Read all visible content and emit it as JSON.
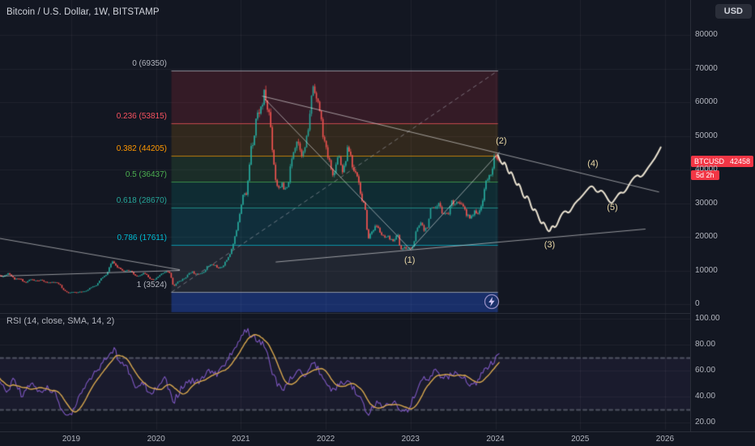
{
  "header": {
    "symbol_title": "Bitcoin / U.S. Dollar, 1W, BITSTAMP",
    "currency_button": "USD"
  },
  "colors": {
    "background": "#131722",
    "grid": "rgba(255,255,255,0.05)",
    "axis_text": "#b2b5be",
    "candle_up": "#26a69a",
    "candle_down": "#ef5350",
    "trendline": "rgba(255,255,255,0.55)",
    "projection": "#ece4d2",
    "wave_label": "#e9d8a6",
    "rsi_line": "#7e57c2",
    "rsi_sma": "#d9a84e",
    "price_tag_bg": "#f23645"
  },
  "price_axis": {
    "ticks": [
      "80000",
      "70000",
      "60000",
      "50000",
      "40000",
      "30000",
      "20000",
      "10000",
      "0"
    ],
    "tick_values": [
      80000,
      70000,
      60000,
      50000,
      40000,
      30000,
      20000,
      10000,
      0
    ],
    "price_tag": {
      "symbol": "BTCUSD",
      "price": "42458",
      "countdown": "5d 2h"
    }
  },
  "time_axis": {
    "labels": [
      "2019",
      "2020",
      "2021",
      "2022",
      "2023",
      "2024",
      "2025",
      "2026"
    ],
    "values": [
      2019,
      2020,
      2021,
      2022,
      2023,
      2024,
      2025,
      2026
    ]
  },
  "rsi_pane": {
    "title": "RSI (14, close, SMA, 14, 2)",
    "ticks": [
      "100.00",
      "80.00",
      "60.00",
      "40.00",
      "20.00"
    ],
    "tick_values": [
      100,
      80,
      60,
      40,
      20
    ],
    "upper_band": 70,
    "lower_band": 30
  },
  "fib": {
    "x_range_years": [
      2020.18,
      2024.03
    ],
    "levels": [
      {
        "label": "0 (69350)",
        "value": 69350,
        "color": "#b2b5be"
      },
      {
        "label": "0.236 (53815)",
        "value": 53815,
        "color": "#f7525f"
      },
      {
        "label": "0.382 (44205)",
        "value": 44205,
        "color": "#ff9800"
      },
      {
        "label": "0.5 (36437)",
        "value": 36437,
        "color": "#4caf50"
      },
      {
        "label": "0.618 (28670)",
        "value": 28670,
        "color": "#26a69a"
      },
      {
        "label": "0.786 (17611)",
        "value": 17611,
        "color": "#00bcd4"
      },
      {
        "label": "1 (3524)",
        "value": 3524,
        "color": "#b2b5be"
      }
    ],
    "bands": [
      {
        "from_price": 69350,
        "to_price": 53815,
        "color": "rgba(242,54,69,0.15)"
      },
      {
        "from_price": 53815,
        "to_price": 44205,
        "color": "rgba(255,152,0,0.13)"
      },
      {
        "from_price": 44205,
        "to_price": 36437,
        "color": "rgba(76,175,80,0.15)"
      },
      {
        "from_price": 36437,
        "to_price": 28670,
        "color": "rgba(0,150,136,0.17)"
      },
      {
        "from_price": 28670,
        "to_price": 17611,
        "color": "rgba(0,188,212,0.14)"
      },
      {
        "from_price": 17611,
        "to_price": 3524,
        "color": "rgba(135,142,156,0.13)"
      },
      {
        "from_price": 3524,
        "to_price": -2400,
        "color": "rgba(41,98,255,0.32)"
      }
    ]
  },
  "waves": [
    {
      "label": "(1)",
      "year": 2022.99,
      "price": 12600
    },
    {
      "label": "(2)",
      "year": 2024.07,
      "price": 48000
    },
    {
      "label": "(3)",
      "year": 2024.64,
      "price": 17200
    },
    {
      "label": "(4)",
      "year": 2025.15,
      "price": 41300
    },
    {
      "label": "(5)",
      "year": 2025.38,
      "price": 28300
    }
  ],
  "drawings": {
    "trendlines": [
      {
        "name": "descending-resistance",
        "from": [
          2021.25,
          61800
        ],
        "to": [
          2025.93,
          33300
        ]
      },
      {
        "name": "triangle-down",
        "from": [
          2021.28,
          61000
        ],
        "to": [
          2023.0,
          16200
        ]
      },
      {
        "name": "triangle-up",
        "from": [
          2023.0,
          16200
        ],
        "to": [
          2024.05,
          45200
        ]
      },
      {
        "name": "ascending-support",
        "from": [
          2021.41,
          12500
        ],
        "to": [
          2025.77,
          22300
        ]
      },
      {
        "name": "wedge-upper",
        "from": [
          2018.16,
          19500
        ],
        "to": [
          2020.28,
          10200
        ]
      },
      {
        "name": "wedge-lower",
        "from": [
          2018.16,
          8300
        ],
        "to": [
          2020.28,
          10000
        ]
      }
    ]
  },
  "chart_data": [
    {
      "type": "candlestick",
      "name": "BTC/USD 1W candles (BITSTAMP)",
      "x_unit": "decimal_year",
      "y_unit": "USD",
      "ylim": [
        0,
        85000
      ],
      "visible_data_range": [
        2018.14,
        2024.05
      ],
      "anchors": [
        [
          2018.14,
          8600
        ],
        [
          2018.2,
          8200
        ],
        [
          2018.26,
          9300
        ],
        [
          2018.33,
          7400
        ],
        [
          2018.4,
          7500
        ],
        [
          2018.46,
          6300
        ],
        [
          2018.52,
          7400
        ],
        [
          2018.58,
          6900
        ],
        [
          2018.64,
          7100
        ],
        [
          2018.7,
          6500
        ],
        [
          2018.76,
          6400
        ],
        [
          2018.82,
          6450
        ],
        [
          2018.87,
          5600
        ],
        [
          2018.9,
          4300
        ],
        [
          2018.93,
          3900
        ],
        [
          2018.97,
          3300
        ],
        [
          2019.02,
          3600
        ],
        [
          2019.06,
          3450
        ],
        [
          2019.12,
          3700
        ],
        [
          2019.18,
          4000
        ],
        [
          2019.24,
          5100
        ],
        [
          2019.3,
          5700
        ],
        [
          2019.36,
          7900
        ],
        [
          2019.42,
          8700
        ],
        [
          2019.45,
          11300
        ],
        [
          2019.49,
          12800
        ],
        [
          2019.53,
          11000
        ],
        [
          2019.57,
          10800
        ],
        [
          2019.62,
          9800
        ],
        [
          2019.66,
          10300
        ],
        [
          2019.71,
          9500
        ],
        [
          2019.76,
          8200
        ],
        [
          2019.81,
          8400
        ],
        [
          2019.85,
          9200
        ],
        [
          2019.89,
          8600
        ],
        [
          2019.93,
          7300
        ],
        [
          2019.98,
          7200
        ],
        [
          2020.03,
          8200
        ],
        [
          2020.08,
          9300
        ],
        [
          2020.13,
          9900
        ],
        [
          2020.17,
          8800
        ],
        [
          2020.205,
          5000
        ],
        [
          2020.24,
          6300
        ],
        [
          2020.28,
          6900
        ],
        [
          2020.33,
          7600
        ],
        [
          2020.38,
          8800
        ],
        [
          2020.42,
          9700
        ],
        [
          2020.46,
          9000
        ],
        [
          2020.51,
          9200
        ],
        [
          2020.55,
          9100
        ],
        [
          2020.6,
          11100
        ],
        [
          2020.65,
          11700
        ],
        [
          2020.7,
          11500
        ],
        [
          2020.74,
          10400
        ],
        [
          2020.79,
          11500
        ],
        [
          2020.83,
          13000
        ],
        [
          2020.88,
          15500
        ],
        [
          2020.92,
          18700
        ],
        [
          2020.96,
          23800
        ],
        [
          2021.0,
          29000
        ],
        [
          2021.03,
          34000
        ],
        [
          2021.06,
          31500
        ],
        [
          2021.09,
          38000
        ],
        [
          2021.12,
          47500
        ],
        [
          2021.15,
          48500
        ],
        [
          2021.18,
          55500
        ],
        [
          2021.22,
          57500
        ],
        [
          2021.25,
          59000
        ],
        [
          2021.28,
          63200
        ],
        [
          2021.31,
          58000
        ],
        [
          2021.34,
          56500
        ],
        [
          2021.37,
          46500
        ],
        [
          2021.41,
          37000
        ],
        [
          2021.44,
          34500
        ],
        [
          2021.48,
          35800
        ],
        [
          2021.51,
          33600
        ],
        [
          2021.55,
          34500
        ],
        [
          2021.58,
          39800
        ],
        [
          2021.62,
          45600
        ],
        [
          2021.66,
          48800
        ],
        [
          2021.69,
          47200
        ],
        [
          2021.73,
          44000
        ],
        [
          2021.77,
          48200
        ],
        [
          2021.81,
          54800
        ],
        [
          2021.83,
          62000
        ],
        [
          2021.86,
          66000
        ],
        [
          2021.89,
          60800
        ],
        [
          2021.93,
          57500
        ],
        [
          2021.97,
          50000
        ],
        [
          2022.0,
          46300
        ],
        [
          2022.03,
          43000
        ],
        [
          2022.06,
          41500
        ],
        [
          2022.09,
          36800
        ],
        [
          2022.12,
          42400
        ],
        [
          2022.16,
          44500
        ],
        [
          2022.19,
          39500
        ],
        [
          2022.22,
          41000
        ],
        [
          2022.26,
          46300
        ],
        [
          2022.29,
          45000
        ],
        [
          2022.32,
          39500
        ],
        [
          2022.36,
          39800
        ],
        [
          2022.39,
          36000
        ],
        [
          2022.43,
          30300
        ],
        [
          2022.46,
          29200
        ],
        [
          2022.5,
          19000
        ],
        [
          2022.53,
          21200
        ],
        [
          2022.57,
          22500
        ],
        [
          2022.6,
          23300
        ],
        [
          2022.64,
          21500
        ],
        [
          2022.67,
          20100
        ],
        [
          2022.71,
          19500
        ],
        [
          2022.74,
          19800
        ],
        [
          2022.78,
          18800
        ],
        [
          2022.81,
          19400
        ],
        [
          2022.85,
          20600
        ],
        [
          2022.88,
          16200
        ],
        [
          2022.92,
          16700
        ],
        [
          2022.96,
          16500
        ],
        [
          2023.0,
          16600
        ],
        [
          2023.03,
          17000
        ],
        [
          2023.06,
          21000
        ],
        [
          2023.1,
          23300
        ],
        [
          2023.13,
          24600
        ],
        [
          2023.16,
          22100
        ],
        [
          2023.2,
          23200
        ],
        [
          2023.24,
          28400
        ],
        [
          2023.27,
          28000
        ],
        [
          2023.31,
          28500
        ],
        [
          2023.34,
          30000
        ],
        [
          2023.37,
          27600
        ],
        [
          2023.41,
          26900
        ],
        [
          2023.45,
          27100
        ],
        [
          2023.48,
          30400
        ],
        [
          2023.52,
          30200
        ],
        [
          2023.55,
          30300
        ],
        [
          2023.59,
          29200
        ],
        [
          2023.62,
          29400
        ],
        [
          2023.66,
          26100
        ],
        [
          2023.7,
          26000
        ],
        [
          2023.73,
          26600
        ],
        [
          2023.77,
          27600
        ],
        [
          2023.81,
          27000
        ],
        [
          2023.84,
          29700
        ],
        [
          2023.87,
          34200
        ],
        [
          2023.9,
          37100
        ],
        [
          2023.93,
          37800
        ],
        [
          2023.96,
          40100
        ],
        [
          2023.99,
          43800
        ],
        [
          2024.02,
          42600
        ],
        [
          2024.05,
          42458
        ]
      ]
    },
    {
      "type": "line",
      "name": "Elliott wave projection (hand-drawn forecast)",
      "points": [
        [
          2024.03,
          44300
        ],
        [
          2024.08,
          40800
        ],
        [
          2024.11,
          42800
        ],
        [
          2024.16,
          38200
        ],
        [
          2024.19,
          39800
        ],
        [
          2024.25,
          34800
        ],
        [
          2024.28,
          36300
        ],
        [
          2024.34,
          30800
        ],
        [
          2024.38,
          32800
        ],
        [
          2024.44,
          27300
        ],
        [
          2024.47,
          28800
        ],
        [
          2024.54,
          23400
        ],
        [
          2024.57,
          24800
        ],
        [
          2024.63,
          20800
        ],
        [
          2024.67,
          23600
        ],
        [
          2024.71,
          22400
        ],
        [
          2024.77,
          26400
        ],
        [
          2024.82,
          27900
        ],
        [
          2024.87,
          26800
        ],
        [
          2024.93,
          29900
        ],
        [
          2025.0,
          31400
        ],
        [
          2025.07,
          33600
        ],
        [
          2025.14,
          35600
        ],
        [
          2025.2,
          32800
        ],
        [
          2025.26,
          34300
        ],
        [
          2025.36,
          29400
        ],
        [
          2025.41,
          31200
        ],
        [
          2025.47,
          33400
        ],
        [
          2025.52,
          32800
        ],
        [
          2025.6,
          36600
        ],
        [
          2025.67,
          38600
        ],
        [
          2025.72,
          37400
        ],
        [
          2025.8,
          40600
        ],
        [
          2025.88,
          43200
        ],
        [
          2025.95,
          46600
        ]
      ]
    },
    {
      "type": "line",
      "name": "RSI (14) weekly",
      "ylim": [
        0,
        100
      ],
      "anchors": [
        [
          2018.14,
          55
        ],
        [
          2018.25,
          42
        ],
        [
          2018.32,
          55
        ],
        [
          2018.42,
          40
        ],
        [
          2018.52,
          50
        ],
        [
          2018.62,
          44
        ],
        [
          2018.72,
          46
        ],
        [
          2018.82,
          42
        ],
        [
          2018.9,
          26
        ],
        [
          2019.0,
          27
        ],
        [
          2019.1,
          42
        ],
        [
          2019.2,
          50
        ],
        [
          2019.32,
          62
        ],
        [
          2019.42,
          70
        ],
        [
          2019.5,
          77
        ],
        [
          2019.58,
          66
        ],
        [
          2019.66,
          62
        ],
        [
          2019.76,
          48
        ],
        [
          2019.84,
          52
        ],
        [
          2019.93,
          42
        ],
        [
          2020.02,
          47
        ],
        [
          2020.1,
          55
        ],
        [
          2020.2,
          35
        ],
        [
          2020.3,
          47
        ],
        [
          2020.42,
          52
        ],
        [
          2020.52,
          51
        ],
        [
          2020.62,
          60
        ],
        [
          2020.72,
          57
        ],
        [
          2020.82,
          65
        ],
        [
          2020.92,
          77
        ],
        [
          2021.0,
          86
        ],
        [
          2021.06,
          92
        ],
        [
          2021.12,
          88
        ],
        [
          2021.2,
          84
        ],
        [
          2021.28,
          80
        ],
        [
          2021.36,
          60
        ],
        [
          2021.44,
          48
        ],
        [
          2021.52,
          46
        ],
        [
          2021.6,
          55
        ],
        [
          2021.68,
          61
        ],
        [
          2021.76,
          56
        ],
        [
          2021.84,
          67
        ],
        [
          2021.92,
          60
        ],
        [
          2022.0,
          50
        ],
        [
          2022.08,
          44
        ],
        [
          2022.16,
          49
        ],
        [
          2022.26,
          53
        ],
        [
          2022.34,
          45
        ],
        [
          2022.42,
          37
        ],
        [
          2022.5,
          27
        ],
        [
          2022.58,
          35
        ],
        [
          2022.66,
          32
        ],
        [
          2022.74,
          33
        ],
        [
          2022.82,
          35
        ],
        [
          2022.88,
          26
        ],
        [
          2022.96,
          29
        ],
        [
          2023.04,
          40
        ],
        [
          2023.12,
          52
        ],
        [
          2023.22,
          55
        ],
        [
          2023.3,
          60
        ],
        [
          2023.38,
          54
        ],
        [
          2023.46,
          56
        ],
        [
          2023.54,
          59
        ],
        [
          2023.62,
          55
        ],
        [
          2023.7,
          47
        ],
        [
          2023.78,
          50
        ],
        [
          2023.86,
          60
        ],
        [
          2023.94,
          65
        ],
        [
          2024.0,
          69
        ],
        [
          2024.05,
          71
        ]
      ]
    },
    {
      "type": "line",
      "name": "SMA(14) of RSI",
      "derived": "rolling mean of the RSI series above"
    }
  ]
}
